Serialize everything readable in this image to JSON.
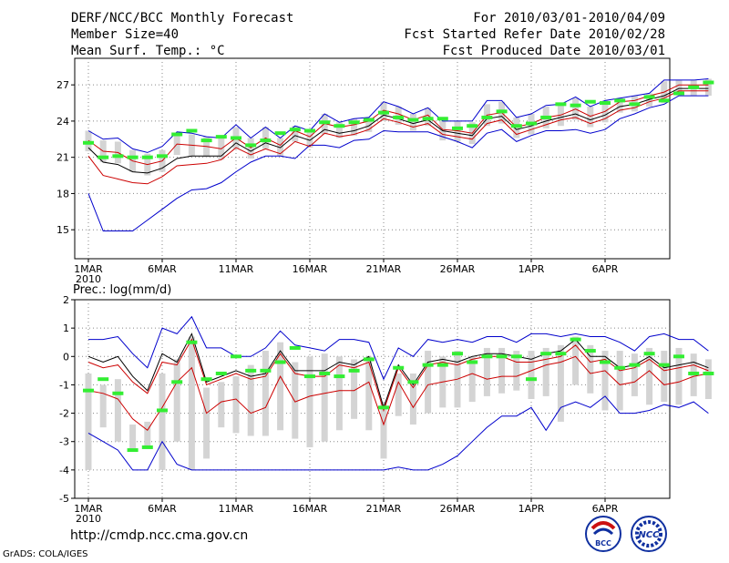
{
  "header": {
    "title": "DERF/NCC/BCC Monthly Forecast",
    "member_size": "Member Size=40",
    "variable": "Mean Surf. Temp.: °C",
    "period": "For 2010/03/01-2010/04/09",
    "fcst_refer": "Fcst Started Refer Date 2010/02/28",
    "fcst_produced": "Fcst Produced Date 2010/03/01"
  },
  "footer": {
    "url": "http://cmdp.ncc.cma.gov.cn",
    "grads": "GrADS: COLA/IGES",
    "logo_bcc": "BCC",
    "logo_ncc": "NCC"
  },
  "colors": {
    "ensemble_max_min": "#0000cc",
    "spread": "#cc0000",
    "mean": "#000000",
    "observed": "#33ee33",
    "box": "#d4d4d4"
  },
  "chart_data": [
    {
      "type": "line",
      "title": "Mean Surf. Temp.: °C",
      "xlabel": "",
      "ylabel": "",
      "ylim": [
        12.6,
        29.2
      ],
      "yticks": [
        15,
        18,
        21,
        24,
        27
      ],
      "xticks": [
        "1MAR",
        "6MAR",
        "11MAR",
        "16MAR",
        "21MAR",
        "26MAR",
        "1APR",
        "6APR"
      ],
      "xticks_year": "2010",
      "days": 40,
      "series": [
        {
          "name": "max",
          "values": [
            23.2,
            22.5,
            22.6,
            21.7,
            21.4,
            21.9,
            23.1,
            23.0,
            22.7,
            22.6,
            23.7,
            22.6,
            23.5,
            22.6,
            23.6,
            23.2,
            24.6,
            23.9,
            24.2,
            24.3,
            25.6,
            25.2,
            24.6,
            25.1,
            24.0,
            24.0,
            24.0,
            25.7,
            25.7,
            24.3,
            24.6,
            25.3,
            25.4,
            26.0,
            25.2,
            25.7,
            25.9,
            26.1,
            26.3,
            27.4,
            27.4,
            27.4,
            27.5
          ]
        },
        {
          "name": "upper",
          "values": [
            22.4,
            21.5,
            21.4,
            20.7,
            20.4,
            20.7,
            22.1,
            22.0,
            21.9,
            21.7,
            22.6,
            21.8,
            22.6,
            22.0,
            23.2,
            22.7,
            23.8,
            23.5,
            23.7,
            24.0,
            24.9,
            24.6,
            24.1,
            24.5,
            23.3,
            23.2,
            23.0,
            24.5,
            24.7,
            23.5,
            23.8,
            24.3,
            24.5,
            25.0,
            24.4,
            24.8,
            25.6,
            25.7,
            26.1,
            26.4,
            27.0,
            27.0,
            27.0
          ]
        },
        {
          "name": "mean",
          "values": [
            21.8,
            20.6,
            20.4,
            19.8,
            19.7,
            20.1,
            20.9,
            21.1,
            21.1,
            21.1,
            22.2,
            21.5,
            22.2,
            21.8,
            22.8,
            22.4,
            23.3,
            23.0,
            23.2,
            23.6,
            24.5,
            24.2,
            23.8,
            24.1,
            23.2,
            23.0,
            22.8,
            24.2,
            24.4,
            23.3,
            23.6,
            24.0,
            24.3,
            24.6,
            24.1,
            24.5,
            25.2,
            25.4,
            25.8,
            26.1,
            26.7,
            26.7,
            26.7
          ]
        },
        {
          "name": "lower",
          "values": [
            21.1,
            19.5,
            19.2,
            18.9,
            18.8,
            19.4,
            20.3,
            20.4,
            20.5,
            20.8,
            21.8,
            21.2,
            21.7,
            21.3,
            22.3,
            21.9,
            23.0,
            22.7,
            22.9,
            23.3,
            24.2,
            23.9,
            23.5,
            23.8,
            22.9,
            22.7,
            22.5,
            23.8,
            24.1,
            22.9,
            23.3,
            23.7,
            24.1,
            24.3,
            23.8,
            24.2,
            24.9,
            25.1,
            25.6,
            25.9,
            26.5,
            26.5,
            26.5
          ]
        },
        {
          "name": "min",
          "values": [
            18.0,
            14.9,
            14.9,
            14.9,
            15.8,
            16.7,
            17.6,
            18.3,
            18.4,
            18.9,
            19.8,
            20.6,
            21.1,
            21.1,
            20.9,
            22.0,
            22.0,
            21.8,
            22.4,
            22.5,
            23.2,
            23.1,
            23.1,
            23.1,
            22.7,
            22.3,
            21.8,
            23.0,
            23.3,
            22.3,
            22.8,
            23.2,
            23.2,
            23.3,
            23.0,
            23.3,
            24.2,
            24.6,
            25.1,
            25.4,
            26.1,
            26.1,
            26.1
          ]
        },
        {
          "name": "observed",
          "values": [
            22.2,
            21.0,
            21.1,
            21.0,
            21.0,
            21.1,
            22.9,
            23.2,
            22.4,
            22.7,
            22.6,
            22.0,
            22.4,
            23.0,
            23.3,
            23.2,
            23.9,
            23.6,
            23.9,
            24.1,
            24.7,
            24.3,
            24.1,
            24.2,
            24.2,
            23.4,
            23.6,
            24.3,
            24.8,
            23.6,
            23.8,
            24.3,
            25.4,
            25.3,
            25.6,
            25.5,
            25.7,
            25.4,
            26.0,
            25.7,
            26.3,
            26.8,
            27.2
          ]
        }
      ]
    },
    {
      "type": "line",
      "title": "Prec.: log(mm/d)",
      "xlabel": "",
      "ylabel": "",
      "ylim": [
        -5,
        2
      ],
      "yticks": [
        -5,
        -4,
        -3,
        -2,
        -1,
        0,
        1,
        2
      ],
      "xticks": [
        "1MAR",
        "6MAR",
        "11MAR",
        "16MAR",
        "21MAR",
        "26MAR",
        "1APR",
        "6APR"
      ],
      "xticks_year": "2010",
      "days": 40,
      "series": [
        {
          "name": "max",
          "values": [
            0.6,
            0.6,
            0.7,
            0.1,
            -0.4,
            1.0,
            0.8,
            1.4,
            0.3,
            0.3,
            0.0,
            0.0,
            0.3,
            0.9,
            0.4,
            0.3,
            0.2,
            0.6,
            0.6,
            0.5,
            -0.8,
            0.3,
            0.0,
            0.6,
            0.5,
            0.6,
            0.5,
            0.7,
            0.7,
            0.5,
            0.8,
            0.8,
            0.7,
            0.8,
            0.7,
            0.7,
            0.5,
            0.2,
            0.7,
            0.8,
            0.6,
            0.6,
            0.2
          ]
        },
        {
          "name": "mean",
          "values": [
            0.0,
            -0.2,
            0.0,
            -0.7,
            -1.2,
            0.1,
            -0.2,
            0.8,
            -0.9,
            -0.7,
            -0.5,
            -0.7,
            -0.6,
            0.2,
            -0.5,
            -0.5,
            -0.5,
            -0.2,
            -0.3,
            0.0,
            -1.8,
            -0.3,
            -1.0,
            -0.2,
            -0.1,
            -0.2,
            0.0,
            0.1,
            0.1,
            0.0,
            -0.1,
            0.1,
            0.2,
            0.6,
            0.0,
            0.0,
            -0.4,
            -0.3,
            0.0,
            -0.4,
            -0.3,
            -0.2,
            -0.4
          ]
        },
        {
          "name": "upper",
          "values": [
            -0.2,
            -0.4,
            -0.3,
            -0.9,
            -1.3,
            -0.2,
            -0.3,
            0.6,
            -1.0,
            -0.8,
            -0.6,
            -0.8,
            -0.7,
            0.1,
            -0.6,
            -0.7,
            -0.7,
            -0.3,
            -0.4,
            -0.2,
            -1.9,
            -0.4,
            -1.1,
            -0.3,
            -0.2,
            -0.3,
            -0.1,
            0.0,
            0.0,
            -0.2,
            -0.2,
            -0.1,
            0.0,
            0.4,
            -0.2,
            -0.1,
            -0.5,
            -0.4,
            -0.1,
            -0.5,
            -0.4,
            -0.3,
            -0.5
          ]
        },
        {
          "name": "lower",
          "values": [
            -1.2,
            -1.3,
            -1.5,
            -2.2,
            -2.6,
            -1.8,
            -0.9,
            -0.4,
            -2.0,
            -1.6,
            -1.5,
            -2.0,
            -1.8,
            -0.7,
            -1.6,
            -1.4,
            -1.3,
            -1.2,
            -1.2,
            -0.9,
            -2.4,
            -0.9,
            -1.8,
            -1.0,
            -0.9,
            -0.8,
            -0.6,
            -0.8,
            -0.7,
            -0.7,
            -0.5,
            -0.3,
            -0.2,
            0.0,
            -0.6,
            -0.5,
            -1.0,
            -0.9,
            -0.5,
            -1.0,
            -0.9,
            -0.7,
            -0.6
          ]
        },
        {
          "name": "min",
          "values": [
            -2.7,
            -3.0,
            -3.3,
            -4.0,
            -4.0,
            -3.0,
            -3.8,
            -4.0,
            -4.0,
            -4.0,
            -4.0,
            -4.0,
            -4.0,
            -4.0,
            -4.0,
            -4.0,
            -4.0,
            -4.0,
            -4.0,
            -4.0,
            -4.0,
            -3.9,
            -4.0,
            -4.0,
            -3.8,
            -3.5,
            -3.0,
            -2.5,
            -2.1,
            -2.1,
            -1.8,
            -2.6,
            -1.8,
            -1.6,
            -1.8,
            -1.4,
            -2.0,
            -2.0,
            -1.9,
            -1.7,
            -1.8,
            -1.6,
            -2.0
          ]
        },
        {
          "name": "observed",
          "values": [
            -1.2,
            -0.8,
            -1.3,
            -3.3,
            -3.2,
            -1.9,
            -0.9,
            0.5,
            -0.8,
            -0.6,
            0.0,
            -0.5,
            -0.5,
            -0.2,
            0.3,
            -0.7,
            -0.6,
            -0.7,
            -0.5,
            -0.1,
            -1.8,
            -0.4,
            -0.9,
            -0.3,
            -0.3,
            0.1,
            -0.2,
            0.0,
            0.0,
            0.0,
            -0.8,
            0.1,
            0.1,
            0.6,
            0.2,
            -0.2,
            -0.4,
            -0.3,
            0.1,
            -0.3,
            0.0,
            -0.6,
            -0.6
          ]
        },
        {
          "name": "box_low",
          "values": [
            -4.0,
            -2.5,
            -3.0,
            -3.3,
            -3.2,
            -4.0,
            -3.0,
            -4.0,
            -3.6,
            -2.5,
            -2.7,
            -2.8,
            -2.8,
            -2.6,
            -2.9,
            -3.2,
            -3.0,
            -2.6,
            -2.2,
            -2.6,
            -3.6,
            -2.1,
            -2.4,
            -2.0,
            -1.8,
            -1.8,
            -1.6,
            -1.4,
            -1.3,
            -1.2,
            -1.5,
            -1.4,
            -2.3,
            -1.0,
            -1.3,
            -1.9,
            -1.9,
            -1.4,
            -1.7,
            -1.6,
            -1.7,
            -1.4,
            -1.5
          ]
        },
        {
          "name": "box_high",
          "values": [
            -0.6,
            -1.0,
            -0.8,
            -2.4,
            -2.3,
            -0.6,
            -0.1,
            0.7,
            -1.1,
            -0.9,
            -0.7,
            -0.3,
            0.2,
            0.5,
            -0.2,
            0.0,
            0.1,
            0.0,
            -0.1,
            0.0,
            -1.6,
            -0.6,
            -0.6,
            0.2,
            0.0,
            0.2,
            0.0,
            0.3,
            0.3,
            0.2,
            0.2,
            0.3,
            0.4,
            0.7,
            0.4,
            0.2,
            0.2,
            0.1,
            0.3,
            0.2,
            0.3,
            0.1,
            -0.1
          ]
        }
      ]
    }
  ]
}
